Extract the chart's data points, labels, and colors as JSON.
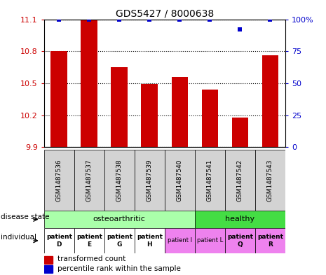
{
  "title": "GDS5427 / 8000638",
  "samples": [
    "GSM1487536",
    "GSM1487537",
    "GSM1487538",
    "GSM1487539",
    "GSM1487540",
    "GSM1487541",
    "GSM1487542",
    "GSM1487543"
  ],
  "bar_values": [
    10.8,
    11.1,
    10.65,
    10.49,
    10.56,
    10.44,
    10.18,
    10.76
  ],
  "dot_values": [
    100,
    100,
    100,
    100,
    100,
    100,
    92,
    100
  ],
  "ylim_left": [
    9.9,
    11.1
  ],
  "ylim_right": [
    0,
    100
  ],
  "yticks_left": [
    9.9,
    10.2,
    10.5,
    10.8,
    11.1
  ],
  "yticks_right": [
    0,
    25,
    50,
    75,
    100
  ],
  "bar_color": "#cc0000",
  "dot_color": "#0000cc",
  "bar_width": 0.55,
  "disease_state_color_light": "#aaffaa",
  "disease_state_color_bright": "#44dd44",
  "individual_colors_white": "#ffffff",
  "individual_colors_purple": "#ee82ee",
  "individual_labels": [
    "patient\nD",
    "patient\nE",
    "patient\nG",
    "patient\nH",
    "patient I",
    "patient L",
    "patient\nQ",
    "patient\nR"
  ],
  "individual_bold": [
    true,
    true,
    true,
    true,
    false,
    false,
    true,
    true
  ],
  "legend_items": [
    "transformed count",
    "percentile rank within the sample"
  ],
  "legend_colors": [
    "#cc0000",
    "#0000cc"
  ],
  "grid_color": "black",
  "background_color": "#ffffff"
}
